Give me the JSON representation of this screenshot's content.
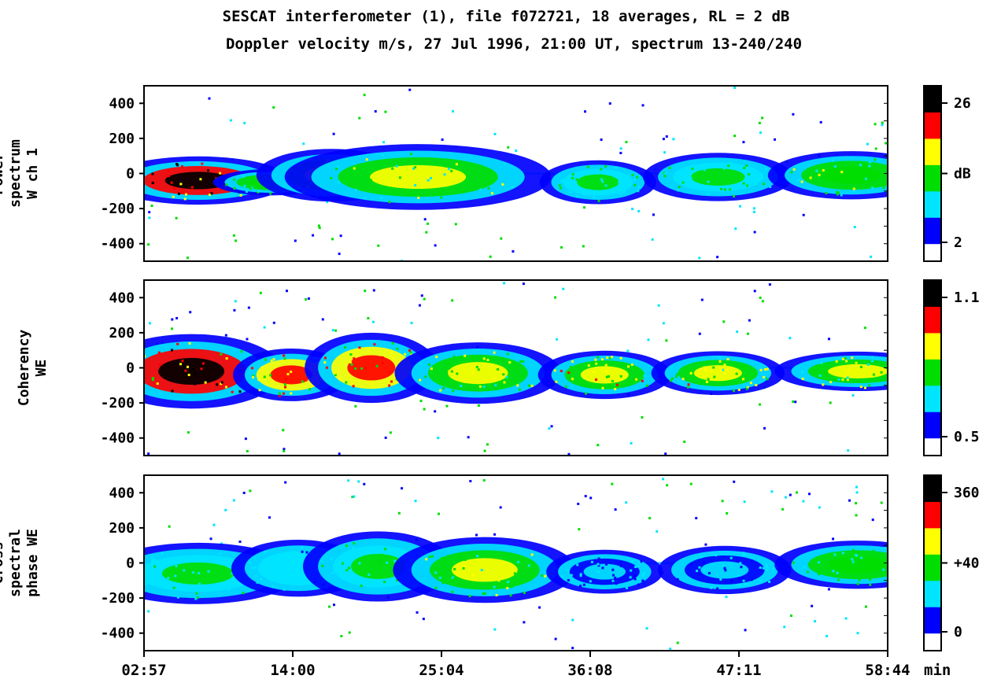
{
  "title_line1": "SESCAT interferometer (1), file f072721, 18 averages, RL = 2 dB",
  "title_line2": "Doppler velocity m/s, 27 Jul 1996, 21:00 UT, spectrum 13-240/240",
  "x_axis": {
    "ticks": [
      "02:57",
      "14:00",
      "25:04",
      "36:08",
      "47:11",
      "58:44"
    ],
    "unit": "min"
  },
  "colors": {
    "scale": [
      "#ffffff",
      "#0000ff",
      "#00e5ff",
      "#00dd00",
      "#ffff00",
      "#ff0000",
      "#000000"
    ]
  },
  "chart_data": [
    {
      "type": "heatmap",
      "ylabel_lines": [
        "Power",
        "spectrum",
        "W ch 1"
      ],
      "yticks": [
        400,
        200,
        0,
        -200,
        -400
      ],
      "ylim": [
        -500,
        500
      ],
      "colorbar_labels": [
        "26",
        "dB",
        "2"
      ],
      "colorbar_range": [
        2,
        26
      ],
      "blobs": [
        {
          "t": 7.0,
          "v": -40,
          "wt": 5.5,
          "wv": 110,
          "level": 0.95
        },
        {
          "t": 12.5,
          "v": -50,
          "wt": 3.5,
          "wv": 60,
          "level": 0.45
        },
        {
          "t": 17.0,
          "v": -10,
          "wt": 4.5,
          "wv": 120,
          "level": 0.55
        },
        {
          "t": 23.5,
          "v": -20,
          "wt": 8.0,
          "wv": 150,
          "level": 0.5
        },
        {
          "t": 37.0,
          "v": -50,
          "wt": 3.5,
          "wv": 100,
          "level": 0.38
        },
        {
          "t": 46.0,
          "v": -20,
          "wt": 4.5,
          "wv": 110,
          "level": 0.4
        },
        {
          "t": 56.0,
          "v": -10,
          "wt": 5.0,
          "wv": 110,
          "level": 0.48
        }
      ]
    },
    {
      "type": "heatmap",
      "ylabel_lines": [
        "Coherency",
        "WE"
      ],
      "yticks": [
        400,
        200,
        0,
        -200,
        -400
      ],
      "ylim": [
        -500,
        500
      ],
      "colorbar_labels": [
        "1.1",
        "0.5"
      ],
      "colorbar_range": [
        0.5,
        1.1
      ],
      "blobs": [
        {
          "t": 6.5,
          "v": -20,
          "wt": 5.5,
          "wv": 170,
          "level": 0.9
        },
        {
          "t": 14.0,
          "v": -40,
          "wt": 3.5,
          "wv": 120,
          "level": 0.7
        },
        {
          "t": 20.0,
          "v": 0,
          "wt": 4.0,
          "wv": 160,
          "level": 0.75
        },
        {
          "t": 28.0,
          "v": -30,
          "wt": 5.0,
          "wv": 140,
          "level": 0.6
        },
        {
          "t": 37.5,
          "v": -40,
          "wt": 4.0,
          "wv": 110,
          "level": 0.65
        },
        {
          "t": 46.0,
          "v": -30,
          "wt": 4.0,
          "wv": 100,
          "level": 0.62
        },
        {
          "t": 56.5,
          "v": -20,
          "wt": 5.0,
          "wv": 90,
          "level": 0.55
        }
      ]
    },
    {
      "type": "heatmap",
      "ylabel_lines": [
        "Cross",
        "spectral",
        "phase WE"
      ],
      "yticks": [
        400,
        200,
        0,
        -200,
        -400
      ],
      "ylim": [
        -500,
        500
      ],
      "colorbar_labels": [
        "360",
        "+40",
        "0"
      ],
      "colorbar_range": [
        0,
        360
      ],
      "blobs": [
        {
          "t": 7.0,
          "v": -60,
          "wt": 6.0,
          "wv": 140,
          "level": 0.35
        },
        {
          "t": 14.5,
          "v": -30,
          "wt": 4.0,
          "wv": 130,
          "level": 0.3
        },
        {
          "t": 20.5,
          "v": -20,
          "wt": 4.5,
          "wv": 160,
          "level": 0.4
        },
        {
          "t": 28.5,
          "v": -40,
          "wt": 5.5,
          "wv": 150,
          "level": 0.5
        },
        {
          "t": 37.5,
          "v": -50,
          "wt": 3.5,
          "wv": 100,
          "level": 0.2
        },
        {
          "t": 46.5,
          "v": -40,
          "wt": 4.0,
          "wv": 110,
          "level": 0.22
        },
        {
          "t": 56.5,
          "v": -10,
          "wt": 5.0,
          "wv": 110,
          "level": 0.45
        }
      ]
    }
  ]
}
